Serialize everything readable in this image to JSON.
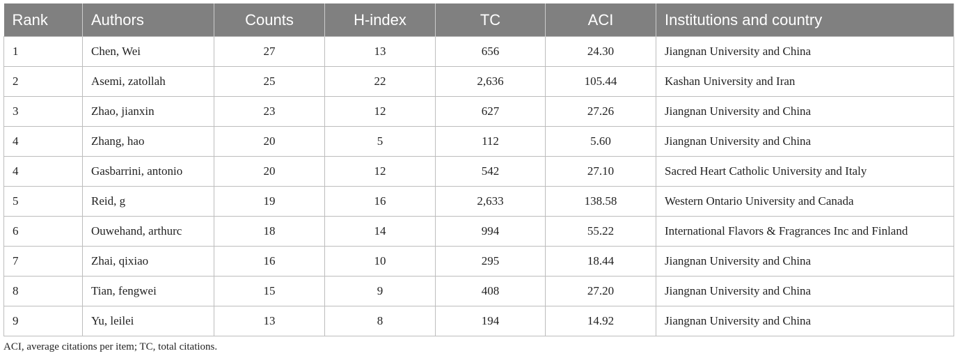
{
  "table": {
    "header": [
      "Rank",
      "Authors",
      "Counts",
      "H-index",
      "TC",
      "ACI",
      "Institutions and country"
    ],
    "rows": [
      [
        "1",
        "Chen, Wei",
        "27",
        "13",
        "656",
        "24.30",
        "Jiangnan University and China"
      ],
      [
        "2",
        "Asemi, zatollah",
        "25",
        "22",
        "2,636",
        "105.44",
        "Kashan University and Iran"
      ],
      [
        "3",
        "Zhao, jianxin",
        "23",
        "12",
        "627",
        "27.26",
        "Jiangnan University and China"
      ],
      [
        "4",
        "Zhang, hao",
        "20",
        "5",
        "112",
        "5.60",
        "Jiangnan University and China"
      ],
      [
        "4",
        "Gasbarrini, antonio",
        "20",
        "12",
        "542",
        "27.10",
        "Sacred Heart Catholic University and Italy"
      ],
      [
        "5",
        "Reid, g",
        "19",
        "16",
        "2,633",
        "138.58",
        "Western Ontario University and Canada"
      ],
      [
        "6",
        "Ouwehand, arthurc",
        "18",
        "14",
        "994",
        "55.22",
        "International Flavors & Fragrances Inc and Finland"
      ],
      [
        "7",
        "Zhai, qixiao",
        "16",
        "10",
        "295",
        "18.44",
        "Jiangnan University and China"
      ],
      [
        "8",
        "Tian, fengwei",
        "15",
        "9",
        "408",
        "27.20",
        "Jiangnan University and China"
      ],
      [
        "9",
        "Yu, leilei",
        "13",
        "8",
        "194",
        "14.92",
        "Jiangnan University and China"
      ]
    ],
    "footnote": "ACI, average citations per item; TC, total citations."
  }
}
